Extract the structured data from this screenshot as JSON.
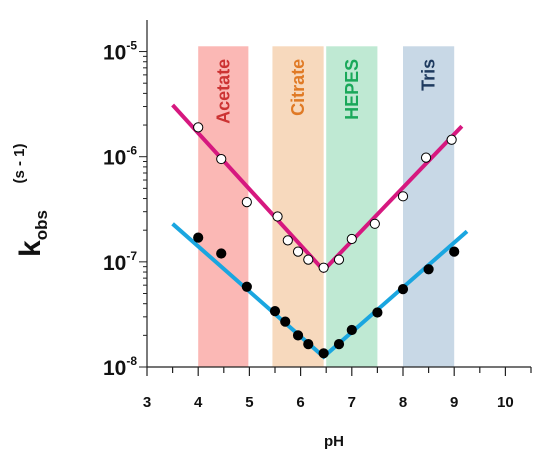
{
  "chart_data": {
    "type": "scatter",
    "xlabel": "pH",
    "ylabel": {
      "main": "k",
      "subscript": "obs",
      "unit": "(s - 1)"
    },
    "xlim": [
      3,
      10.5
    ],
    "ylim_log10": [
      -8,
      -4.7
    ],
    "x_ticks": [
      "3",
      "4",
      "5",
      "6",
      "7",
      "8",
      "9",
      "10"
    ],
    "y_ticks": [
      {
        "base": "10",
        "exp": "-8",
        "log10": -8
      },
      {
        "base": "10",
        "exp": "-7",
        "log10": -7
      },
      {
        "base": "10",
        "exp": "-6",
        "log10": -6
      },
      {
        "base": "10",
        "exp": "-5",
        "log10": -5
      }
    ],
    "grid": false,
    "buffer_bands": [
      {
        "label": "Acetate",
        "x_range": [
          4.0,
          4.98
        ],
        "fill": "#fbb8b5",
        "text_color": "#cc3333"
      },
      {
        "label": "Citrate",
        "x_range": [
          5.45,
          6.45
        ],
        "fill": "#f7d9bd",
        "text_color": "#e07a25"
      },
      {
        "label": "HEPES",
        "x_range": [
          6.5,
          7.5
        ],
        "fill": "#bfe9d3",
        "text_color": "#1aa85a"
      },
      {
        "label": "Tris",
        "x_range": [
          8.0,
          9.0
        ],
        "fill": "#c8d8e6",
        "text_color": "#1e3a5f"
      }
    ],
    "series": [
      {
        "marker": "open-circle",
        "fit_color": "#d6187f",
        "x": [
          4.0,
          4.45,
          4.95,
          5.55,
          5.75,
          5.95,
          6.15,
          6.45,
          6.75,
          7.0,
          7.45,
          8.0,
          8.45,
          8.95
        ],
        "y": [
          1.9e-06,
          9.5e-07,
          3.7e-07,
          2.7e-07,
          1.6e-07,
          1.25e-07,
          1.05e-07,
          8.8e-08,
          1.05e-07,
          1.65e-07,
          2.3e-07,
          4.2e-07,
          9.8e-07,
          1.45e-06
        ],
        "fit_line": {
          "x": [
            3.5,
            6.45,
            9.15
          ],
          "y": [
            3.1e-06,
            8.3e-08,
            1.95e-06
          ]
        }
      },
      {
        "marker": "filled-circle",
        "fit_color": "#1aa6e0",
        "x": [
          4.0,
          4.45,
          4.95,
          5.5,
          5.7,
          5.95,
          6.15,
          6.45,
          6.75,
          7.0,
          7.5,
          8.0,
          8.5,
          9.0
        ],
        "y": [
          1.7e-07,
          1.2e-07,
          5.8e-08,
          3.4e-08,
          2.7e-08,
          2e-08,
          1.65e-08,
          1.35e-08,
          1.65e-08,
          2.25e-08,
          3.3e-08,
          5.5e-08,
          8.5e-08,
          1.25e-07
        ],
        "fit_line": {
          "x": [
            3.5,
            6.45,
            9.25
          ],
          "y": [
            2.3e-07,
            1.25e-08,
            1.95e-07
          ]
        }
      }
    ]
  }
}
